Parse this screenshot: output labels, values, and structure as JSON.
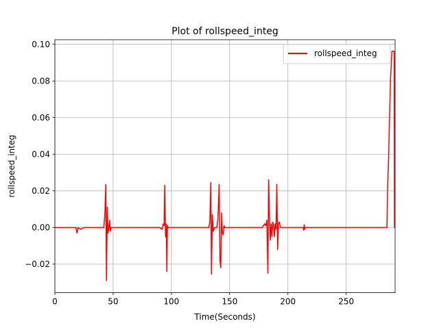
{
  "chart_data": {
    "type": "line",
    "title": "Plot of rollspeed_integ",
    "xlabel": "Time(Seconds)",
    "ylabel": "rollspeed_integ",
    "xlim": [
      0,
      292
    ],
    "ylim": [
      -0.0356,
      0.1025
    ],
    "xticks": [
      0,
      50,
      100,
      150,
      200,
      250
    ],
    "xtick_labels": [
      "0",
      "50",
      "100",
      "150",
      "200",
      "250"
    ],
    "yticks": [
      -0.02,
      0.0,
      0.02,
      0.04,
      0.06,
      0.08,
      0.1
    ],
    "ytick_labels": [
      "−0.02",
      "0.00",
      "0.02",
      "0.04",
      "0.06",
      "0.08",
      "0.10"
    ],
    "grid": true,
    "legend_position": "top-right",
    "series": [
      {
        "name": "rollspeed_integ",
        "color": "#ff0000",
        "x": [
          0,
          18,
          19,
          20,
          22,
          25,
          27,
          30,
          35,
          42,
          43,
          43.7,
          44.3,
          45,
          45.6,
          46.2,
          47,
          47.6,
          48.3,
          49,
          52,
          60,
          70,
          80,
          90,
          92,
          93,
          93.8,
          94.3,
          95,
          95.6,
          96.1,
          96.6,
          97.2,
          97.8,
          98.5,
          100,
          110,
          120,
          130,
          132,
          133,
          133.8,
          134.4,
          135.2,
          135.9,
          136.6,
          137.2,
          138,
          139,
          140,
          141,
          141.7,
          142.4,
          143.1,
          143.8,
          144.5,
          145.2,
          145.9,
          146.6,
          147.3,
          148,
          150,
          160,
          170,
          178,
          180,
          181,
          182,
          182.8,
          183.5,
          184.2,
          184.9,
          185.6,
          186.3,
          187,
          187.7,
          188.4,
          189.1,
          189.8,
          190.5,
          191.2,
          191.9,
          192.6,
          193.3,
          194,
          194.7,
          195.4,
          196.1,
          197,
          200,
          210,
          212,
          213,
          213.5,
          214,
          214.5,
          215,
          220,
          230,
          240,
          250,
          260,
          270,
          280,
          285,
          285.5,
          286.5,
          288,
          289.3,
          290.5,
          291.2,
          291.5,
          292
        ],
        "y": [
          0,
          0,
          -0.003,
          0,
          -0.001,
          0,
          0,
          0,
          0,
          0,
          0.008,
          0.0235,
          -0.029,
          0.011,
          -0.003,
          -0.001,
          0.004,
          -0.002,
          0,
          0,
          0,
          0,
          0,
          0,
          0,
          -0.001,
          0.002,
          0.001,
          0.023,
          -0.005,
          0.002,
          -0.024,
          0.001,
          0,
          0,
          0,
          0,
          0,
          0,
          0,
          0,
          0.003,
          0.0245,
          -0.0255,
          0.007,
          -0.002,
          -0.001,
          0,
          0,
          0,
          0.005,
          0.0235,
          -0.018,
          -0.022,
          0.008,
          -0.003,
          -0.004,
          0.001,
          0,
          0,
          0,
          0,
          0,
          0,
          0,
          0,
          0.002,
          0.001,
          0.004,
          -0.025,
          0.026,
          0.005,
          -0.007,
          0.002,
          -0.005,
          0.003,
          0.001,
          -0.005,
          0.002,
          -0.001,
          0.0235,
          -0.012,
          0.002,
          0.003,
          0.001,
          0,
          0,
          0,
          0,
          0,
          0,
          0,
          0,
          0,
          -0.0015,
          0.0015,
          -0.001,
          0,
          0,
          0,
          0,
          0,
          0,
          0,
          0,
          0,
          0.0195,
          0.04,
          0.08,
          0.0962,
          0.0962,
          0.0962,
          0,
          0
        ]
      }
    ]
  }
}
